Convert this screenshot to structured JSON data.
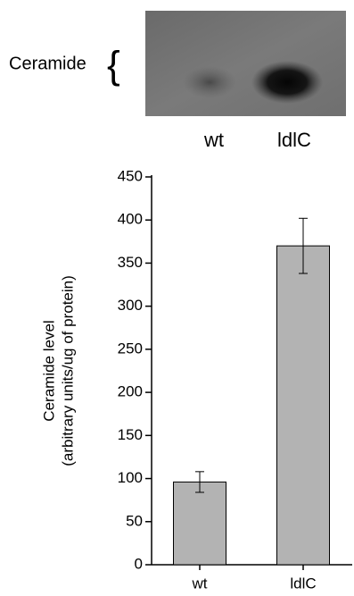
{
  "blot": {
    "label": "Ceramide",
    "lanes": [
      "wt",
      "ldlC"
    ]
  },
  "chart_data": {
    "type": "bar",
    "y_label": [
      "Ceramide level",
      "(arbitrary units/ug of protein)"
    ],
    "categories": [
      "wt",
      "ldlC"
    ],
    "values": [
      96,
      370
    ],
    "errors": [
      12,
      32
    ],
    "color": "#b3b3b3",
    "ylim": [
      0,
      450
    ],
    "yticks": [
      0,
      50,
      100,
      150,
      200,
      250,
      300,
      350,
      400,
      450
    ]
  }
}
